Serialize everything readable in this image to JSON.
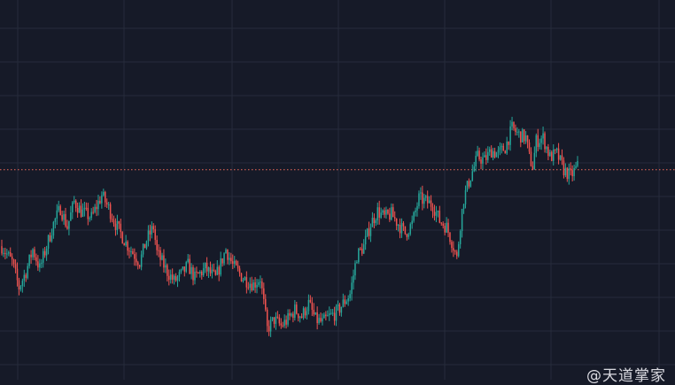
{
  "colors": {
    "background": "#161a28",
    "grid": "#262b3b",
    "up": "#26a69a",
    "down": "#ef5350",
    "price_line": "#ef6a5a"
  },
  "watermark": {
    "text": "@天道掌家"
  },
  "chart_data": {
    "type": "candlestick",
    "grid": true,
    "ylim": [
      0,
      100
    ],
    "current_price": 62,
    "price_line_style": "dotted",
    "keyframes": [
      [
        0,
        38
      ],
      [
        6,
        33
      ],
      [
        10,
        25
      ],
      [
        14,
        30
      ],
      [
        18,
        37
      ],
      [
        22,
        31
      ],
      [
        26,
        38
      ],
      [
        30,
        45
      ],
      [
        34,
        50
      ],
      [
        38,
        44
      ],
      [
        42,
        52
      ],
      [
        46,
        49
      ],
      [
        52,
        47
      ],
      [
        58,
        54
      ],
      [
        62,
        50
      ],
      [
        66,
        45
      ],
      [
        72,
        39
      ],
      [
        76,
        36
      ],
      [
        80,
        33
      ],
      [
        84,
        40
      ],
      [
        88,
        44
      ],
      [
        90,
        36
      ],
      [
        96,
        30
      ],
      [
        100,
        27
      ],
      [
        104,
        29
      ],
      [
        108,
        32
      ],
      [
        112,
        28
      ],
      [
        118,
        31
      ],
      [
        124,
        28
      ],
      [
        128,
        34
      ],
      [
        130,
        37
      ],
      [
        134,
        32
      ],
      [
        140,
        28
      ],
      [
        146,
        26
      ],
      [
        150,
        28
      ],
      [
        154,
        12
      ],
      [
        158,
        15
      ],
      [
        162,
        13
      ],
      [
        166,
        15
      ],
      [
        170,
        18
      ],
      [
        174,
        16
      ],
      [
        178,
        20
      ],
      [
        182,
        15
      ],
      [
        186,
        14
      ],
      [
        190,
        16
      ],
      [
        194,
        17
      ],
      [
        198,
        20
      ],
      [
        202,
        23
      ],
      [
        206,
        35
      ],
      [
        210,
        38
      ],
      [
        214,
        45
      ],
      [
        218,
        49
      ],
      [
        222,
        47
      ],
      [
        226,
        48
      ],
      [
        230,
        45
      ],
      [
        234,
        42
      ],
      [
        238,
        45
      ],
      [
        242,
        53
      ],
      [
        246,
        52
      ],
      [
        250,
        51
      ],
      [
        254,
        46
      ],
      [
        258,
        44
      ],
      [
        262,
        38
      ],
      [
        264,
        34
      ],
      [
        266,
        45
      ],
      [
        268,
        53
      ],
      [
        272,
        60
      ],
      [
        276,
        66
      ],
      [
        280,
        65
      ],
      [
        284,
        68
      ],
      [
        288,
        67
      ],
      [
        292,
        69
      ],
      [
        296,
        75
      ],
      [
        300,
        73
      ],
      [
        304,
        72
      ],
      [
        306,
        66
      ],
      [
        308,
        63
      ],
      [
        310,
        71
      ],
      [
        314,
        72
      ],
      [
        318,
        66
      ],
      [
        322,
        67
      ],
      [
        326,
        62
      ],
      [
        330,
        60
      ],
      [
        334,
        63
      ]
    ]
  }
}
